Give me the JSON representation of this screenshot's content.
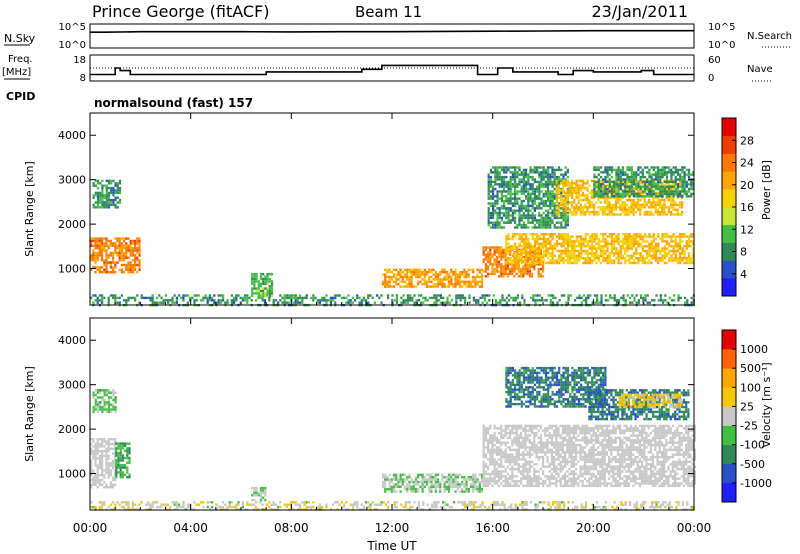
{
  "header": {
    "station": "Prince George (fitACF)",
    "beam": "Beam 11",
    "date": "23/Jan/2011"
  },
  "noise_panel": {
    "left_label": "N.Sky",
    "left_ticks": [
      "10^5",
      "10^0"
    ],
    "right_label": "N.Search",
    "right_ticks": [
      "10^5",
      "10^0"
    ]
  },
  "freq_panel": {
    "left_label_1": "Freq.",
    "left_label_2": "[MHz]",
    "left_ticks": [
      "18",
      "8"
    ],
    "right_label": "Nave",
    "right_ticks": [
      "60",
      "0"
    ],
    "cpid_label": "CPID",
    "cpid_value": "normalsound (fast) 157"
  },
  "power_panel": {
    "ylabel": "Slant Range [km]",
    "yticks": [
      "4000",
      "3000",
      "2000",
      "1000"
    ],
    "colorbar_label": "Power [dB]",
    "colorbar_ticks": [
      "28",
      "24",
      "20",
      "16",
      "12",
      "8",
      "4"
    ],
    "colors": [
      "#1e1eff",
      "#2850c8",
      "#2e8b57",
      "#40c040",
      "#c8e632",
      "#f5d200",
      "#ffa500",
      "#ff7800",
      "#f03c00",
      "#e60000"
    ]
  },
  "velocity_panel": {
    "ylabel": "Slant Range [km]",
    "yticks": [
      "4000",
      "3000",
      "2000",
      "1000"
    ],
    "colorbar_label": "Velocity [m s⁻¹]",
    "colorbar_ticks": [
      "1000",
      "500",
      "100",
      "25",
      "-25",
      "-100",
      "-500",
      "-1000"
    ],
    "colors": [
      "#1e1eff",
      "#2850c8",
      "#2e8b57",
      "#40c040",
      "#c8c8c8",
      "#f5c800",
      "#ffa500",
      "#ff6400",
      "#e60000"
    ],
    "ground_scatter_color": "#c8c8c8"
  },
  "x_axis": {
    "label": "Time UT",
    "ticks": [
      "00:00",
      "04:00",
      "08:00",
      "12:00",
      "16:00",
      "20:00",
      "00:00"
    ]
  },
  "chart_data": [
    {
      "type": "line",
      "title": "N.Sky / N.Search",
      "x": [
        0,
        0.6,
        2,
        4,
        6,
        8,
        10,
        12,
        14,
        16,
        18,
        20,
        22,
        24
      ],
      "series": [
        {
          "name": "N.Sky",
          "values": [
            3.3,
            3.3,
            3.4,
            3.4,
            3.4,
            3.35,
            3.4,
            3.4,
            3.45,
            3.5,
            3.55,
            3.6,
            3.6,
            3.6
          ]
        }
      ],
      "ylim": [
        0,
        5
      ],
      "yscale": "log10"
    },
    {
      "type": "line",
      "title": "Freq. / Nave",
      "x": [
        0,
        1.0,
        1.2,
        1.6,
        6.5,
        7.0,
        10.4,
        10.8,
        11.6,
        14.0,
        15.4,
        16.2,
        16.8,
        17.6,
        18.6,
        19.2,
        20.0,
        21.9,
        22.4,
        24
      ],
      "series": [
        {
          "name": "Freq. [MHz]",
          "values": [
            10.5,
            13.0,
            12.0,
            10.5,
            10.5,
            11.5,
            11.5,
            12.5,
            14.0,
            14.0,
            10.5,
            13.0,
            11.5,
            11.5,
            10.5,
            12.0,
            11.5,
            12.0,
            10.5,
            10.5
          ]
        },
        {
          "name": "Nave",
          "values": [
            33,
            33,
            33,
            33,
            33,
            33,
            33,
            33,
            33,
            33,
            33,
            33,
            33,
            33,
            33,
            33,
            33,
            33,
            33,
            33
          ]
        }
      ],
      "ylim": [
        8,
        18
      ]
    },
    {
      "type": "heatmap",
      "title": "Power [dB]",
      "xlabel": "Time UT",
      "ylabel": "Slant Range [km]",
      "xlim": [
        0,
        24
      ],
      "ylim": [
        180,
        4500
      ],
      "clim": [
        0,
        30
      ],
      "patches": [
        {
          "t0": 0.0,
          "t1": 2.0,
          "r0": 900,
          "r1": 1700,
          "value": 22
        },
        {
          "t0": 0.1,
          "t1": 1.2,
          "r0": 2400,
          "r1": 3000,
          "value": 8
        },
        {
          "t0": 0.0,
          "t1": 24.0,
          "r0": 180,
          "r1": 420,
          "value": 8
        },
        {
          "t0": 6.4,
          "t1": 7.2,
          "r0": 400,
          "r1": 900,
          "value": 10
        },
        {
          "t0": 11.6,
          "t1": 15.6,
          "r0": 600,
          "r1": 1000,
          "value": 20
        },
        {
          "t0": 15.6,
          "t1": 18.0,
          "r0": 800,
          "r1": 1500,
          "value": 22
        },
        {
          "t0": 15.8,
          "t1": 19.0,
          "r0": 1900,
          "r1": 3300,
          "value": 8
        },
        {
          "t0": 16.5,
          "t1": 24.0,
          "r0": 1100,
          "r1": 1800,
          "value": 18
        },
        {
          "t0": 18.5,
          "t1": 23.5,
          "r0": 2200,
          "r1": 3000,
          "value": 18
        },
        {
          "t0": 20.0,
          "t1": 24.0,
          "r0": 2600,
          "r1": 3300,
          "value": 8
        }
      ]
    },
    {
      "type": "heatmap",
      "title": "Velocity",
      "xlabel": "Time UT",
      "ylabel": "Slant Range [km]",
      "xlim": [
        0,
        24
      ],
      "ylim": [
        180,
        4500
      ],
      "clim": [
        -1000,
        1000
      ],
      "patches": [
        {
          "t0": 0.0,
          "t1": 1.0,
          "r0": 700,
          "r1": 1800,
          "value": 0,
          "ground_scatter": true
        },
        {
          "t0": 1.0,
          "t1": 1.6,
          "r0": 900,
          "r1": 1700,
          "value": -300
        },
        {
          "t0": 0.1,
          "t1": 1.0,
          "r0": 2400,
          "r1": 2900,
          "value": -200
        },
        {
          "t0": 0.0,
          "t1": 24.0,
          "r0": 180,
          "r1": 380,
          "value": 50
        },
        {
          "t0": 6.4,
          "t1": 7.0,
          "r0": 400,
          "r1": 700,
          "value": -100
        },
        {
          "t0": 11.6,
          "t1": 15.6,
          "r0": 600,
          "r1": 1000,
          "value": -100
        },
        {
          "t0": 15.6,
          "t1": 24.0,
          "r0": 700,
          "r1": 2100,
          "value": 0,
          "ground_scatter": true
        },
        {
          "t0": 16.5,
          "t1": 20.5,
          "r0": 2500,
          "r1": 3400,
          "value": -500
        },
        {
          "t0": 19.8,
          "t1": 23.8,
          "r0": 2200,
          "r1": 2900,
          "value": -500
        },
        {
          "t0": 21.0,
          "t1": 23.5,
          "r0": 2500,
          "r1": 2800,
          "value": 200
        }
      ]
    }
  ]
}
